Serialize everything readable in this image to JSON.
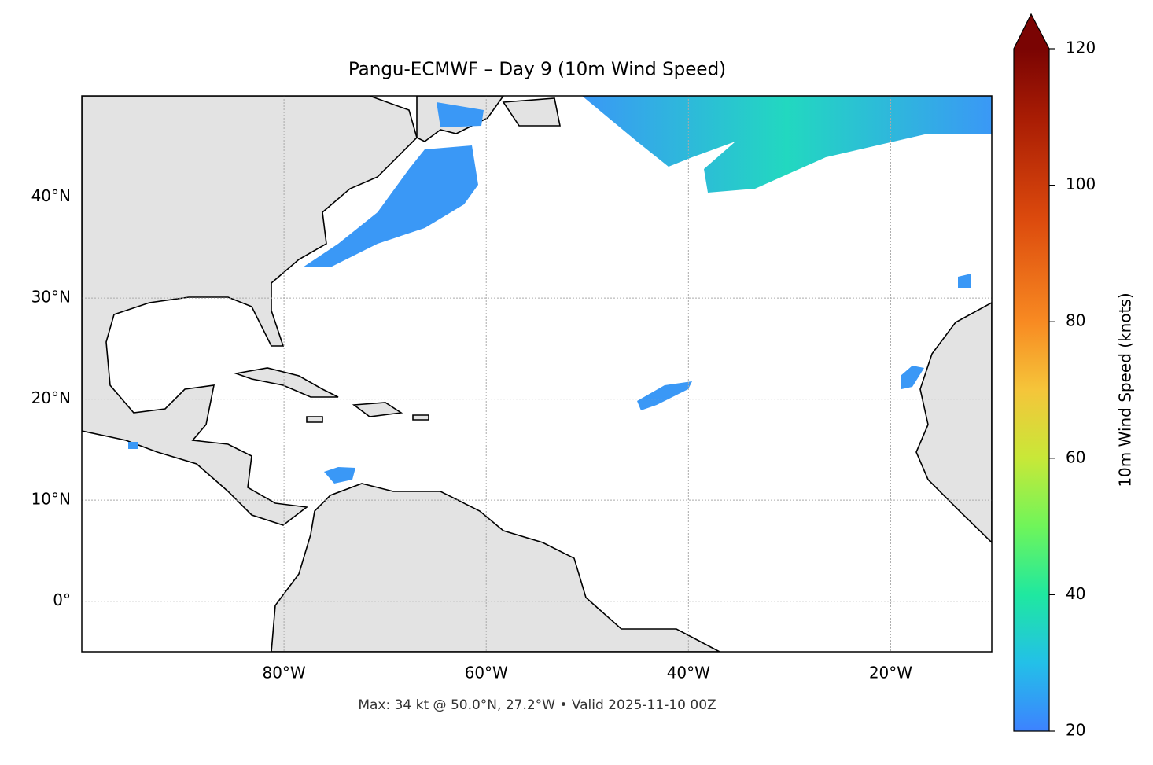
{
  "chart_data": {
    "type": "map",
    "title": "Pangu-ECMWF – Day 9 (10m Wind Speed)",
    "annotation": "Max: 34 kt @ 50.0°N, 27.2°W • Valid 2025-11-10 00Z",
    "xlim": [
      -100,
      -10
    ],
    "ylim": [
      -5,
      50
    ],
    "xticks": [
      {
        "value": -80,
        "label": "80°W"
      },
      {
        "value": -60,
        "label": "60°W"
      },
      {
        "value": -40,
        "label": "40°W"
      },
      {
        "value": -20,
        "label": "20°W"
      }
    ],
    "yticks": [
      {
        "value": 0,
        "label": "0°"
      },
      {
        "value": 10,
        "label": "10°N"
      },
      {
        "value": 20,
        "label": "20°N"
      },
      {
        "value": 30,
        "label": "30°N"
      },
      {
        "value": 40,
        "label": "40°N"
      }
    ],
    "grid": true,
    "colorbar": {
      "label": "10m Wind Speed (knots)",
      "lim": [
        20,
        120
      ],
      "ticks": [
        20,
        40,
        60,
        80,
        100,
        120
      ]
    }
  }
}
